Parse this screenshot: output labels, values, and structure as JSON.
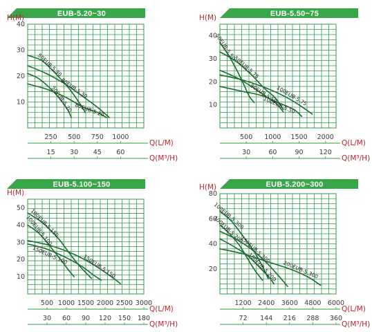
{
  "colors": {
    "grid": "#2f9a44",
    "title_bg": "#3aa64a",
    "curve": "#1c6b2f",
    "axis_label": "#c0232b"
  },
  "chart_data": [
    {
      "type": "line",
      "title": "EUB-5.20~30",
      "ylabel": "H(M)",
      "xlabel": "Q(L/M)",
      "x2label": "Q(M³/H)",
      "ylim": [
        0,
        40
      ],
      "xlim": [
        0,
        1250
      ],
      "yticks": [
        10,
        20,
        30,
        40
      ],
      "xticks": [
        250,
        500,
        750,
        1000
      ],
      "x2ticks": [
        15,
        30,
        45,
        60
      ],
      "grid": true,
      "series": [
        {
          "name": "50EUB-5.30",
          "x": [
            0,
            150,
            300,
            450,
            550,
            620
          ],
          "y": [
            28,
            26,
            21,
            15,
            10,
            6
          ]
        },
        {
          "name": "50EUB-5.20",
          "x": [
            0,
            120,
            250,
            350,
            430,
            470
          ],
          "y": [
            21,
            19,
            15,
            11,
            7,
            4
          ]
        },
        {
          "name": "80EUB-5.30",
          "x": [
            0,
            200,
            400,
            600,
            750,
            880
          ],
          "y": [
            24,
            21,
            17,
            12,
            8,
            4
          ]
        },
        {
          "name": "80EUB-5.20",
          "x": [
            0,
            200,
            400,
            600,
            750,
            850
          ],
          "y": [
            17,
            15,
            12,
            8,
            6,
            4
          ]
        }
      ]
    },
    {
      "type": "line",
      "title": "EUB-5.50~75",
      "ylabel": "H(M)",
      "xlabel": "Q(L/M)",
      "x2label": "Q(M³/H)",
      "ylim": [
        0,
        45
      ],
      "xlim": [
        0,
        2200
      ],
      "yticks": [
        10,
        20,
        30,
        40
      ],
      "xticks": [
        500,
        1000,
        1500,
        2000
      ],
      "x2ticks": [
        30,
        60,
        90,
        120
      ],
      "grid": true,
      "series": [
        {
          "name": "50EUB-5.50",
          "x": [
            0,
            150,
            300,
            450,
            550,
            650
          ],
          "y": [
            37,
            32,
            26,
            19,
            14,
            11
          ]
        },
        {
          "name": "50EUB-5.75",
          "x": [
            0,
            300,
            600,
            850,
            1050,
            1200
          ],
          "y": [
            33,
            29,
            23,
            17,
            13,
            8
          ]
        },
        {
          "name": "80EUB-5.50",
          "x": [
            0,
            300,
            600,
            850,
            1050,
            1200
          ],
          "y": [
            25,
            22,
            18,
            14,
            11,
            7
          ]
        },
        {
          "name": "100EUB-5.75",
          "x": [
            0,
            400,
            800,
            1200,
            1500,
            1750
          ],
          "y": [
            23,
            21,
            18,
            14,
            10,
            6
          ]
        },
        {
          "name": "100EUB-5.50",
          "x": [
            0,
            400,
            800,
            1100,
            1400,
            1550
          ],
          "y": [
            18,
            16,
            14,
            11,
            8,
            5
          ]
        }
      ]
    },
    {
      "type": "line",
      "title": "EUB-5.100~150",
      "ylabel": "H(M)",
      "xlabel": "Q(L/M)",
      "x2label": "Q(M³/H)",
      "ylim": [
        0,
        55
      ],
      "xlim": [
        0,
        3000
      ],
      "yticks": [
        10,
        20,
        30,
        40,
        50
      ],
      "xticks": [
        500,
        1000,
        1500,
        2000,
        2500,
        3000
      ],
      "x2ticks": [
        30,
        60,
        90,
        120,
        150,
        180
      ],
      "grid": true,
      "series": [
        {
          "name": "100EUB-5.150",
          "x": [
            0,
            400,
            800,
            1100,
            1350,
            1650
          ],
          "y": [
            47,
            41,
            32,
            23,
            16,
            9
          ]
        },
        {
          "name": "100EUB-5.100",
          "x": [
            0,
            300,
            600,
            850,
            1050,
            1200
          ],
          "y": [
            40,
            35,
            27,
            20,
            14,
            10
          ]
        },
        {
          "name": "150EUB-5.150",
          "x": [
            0,
            600,
            1200,
            1700,
            2100,
            2400
          ],
          "y": [
            31,
            28,
            23,
            17,
            11,
            6
          ]
        },
        {
          "name": "150EUB-5.100",
          "x": [
            0,
            500,
            1000,
            1400,
            1700,
            1900
          ],
          "y": [
            29,
            26,
            21,
            16,
            11,
            8
          ]
        }
      ]
    },
    {
      "type": "line",
      "title": "EUB-5.200~300",
      "ylabel": "H(M)",
      "xlabel": "Q(L/M)",
      "x2label": "Q(M³/H)",
      "ylim": [
        0,
        80
      ],
      "xlim": [
        0,
        6000
      ],
      "yticks": [
        20,
        40,
        60,
        80
      ],
      "xticks": [
        1200,
        2400,
        3600,
        4800,
        6000
      ],
      "x2ticks": [
        72,
        144,
        216,
        288,
        360
      ],
      "grid": true,
      "series": [
        {
          "name": "100EUB-5.300",
          "x": [
            0,
            600,
            1200,
            1800,
            2200,
            2500
          ],
          "y": [
            66,
            58,
            46,
            33,
            22,
            12
          ]
        },
        {
          "name": "100EUB-5.200",
          "x": [
            0,
            500,
            1000,
            1400,
            1800,
            2200
          ],
          "y": [
            55,
            48,
            39,
            29,
            19,
            11
          ]
        },
        {
          "name": "150EUB-5.300",
          "x": [
            0,
            800,
            1600,
            2400,
            3000,
            3500
          ],
          "y": [
            50,
            44,
            36,
            25,
            15,
            6
          ]
        },
        {
          "name": "150EUB-5.200",
          "x": [
            0,
            700,
            1400,
            2000,
            2500,
            2800
          ],
          "y": [
            44,
            38,
            31,
            22,
            14,
            8
          ]
        },
        {
          "name": "200EUB-5.300",
          "x": [
            0,
            1200,
            2400,
            3600,
            4500,
            5200
          ],
          "y": [
            36,
            32,
            26,
            20,
            14,
            7
          ]
        }
      ]
    }
  ]
}
